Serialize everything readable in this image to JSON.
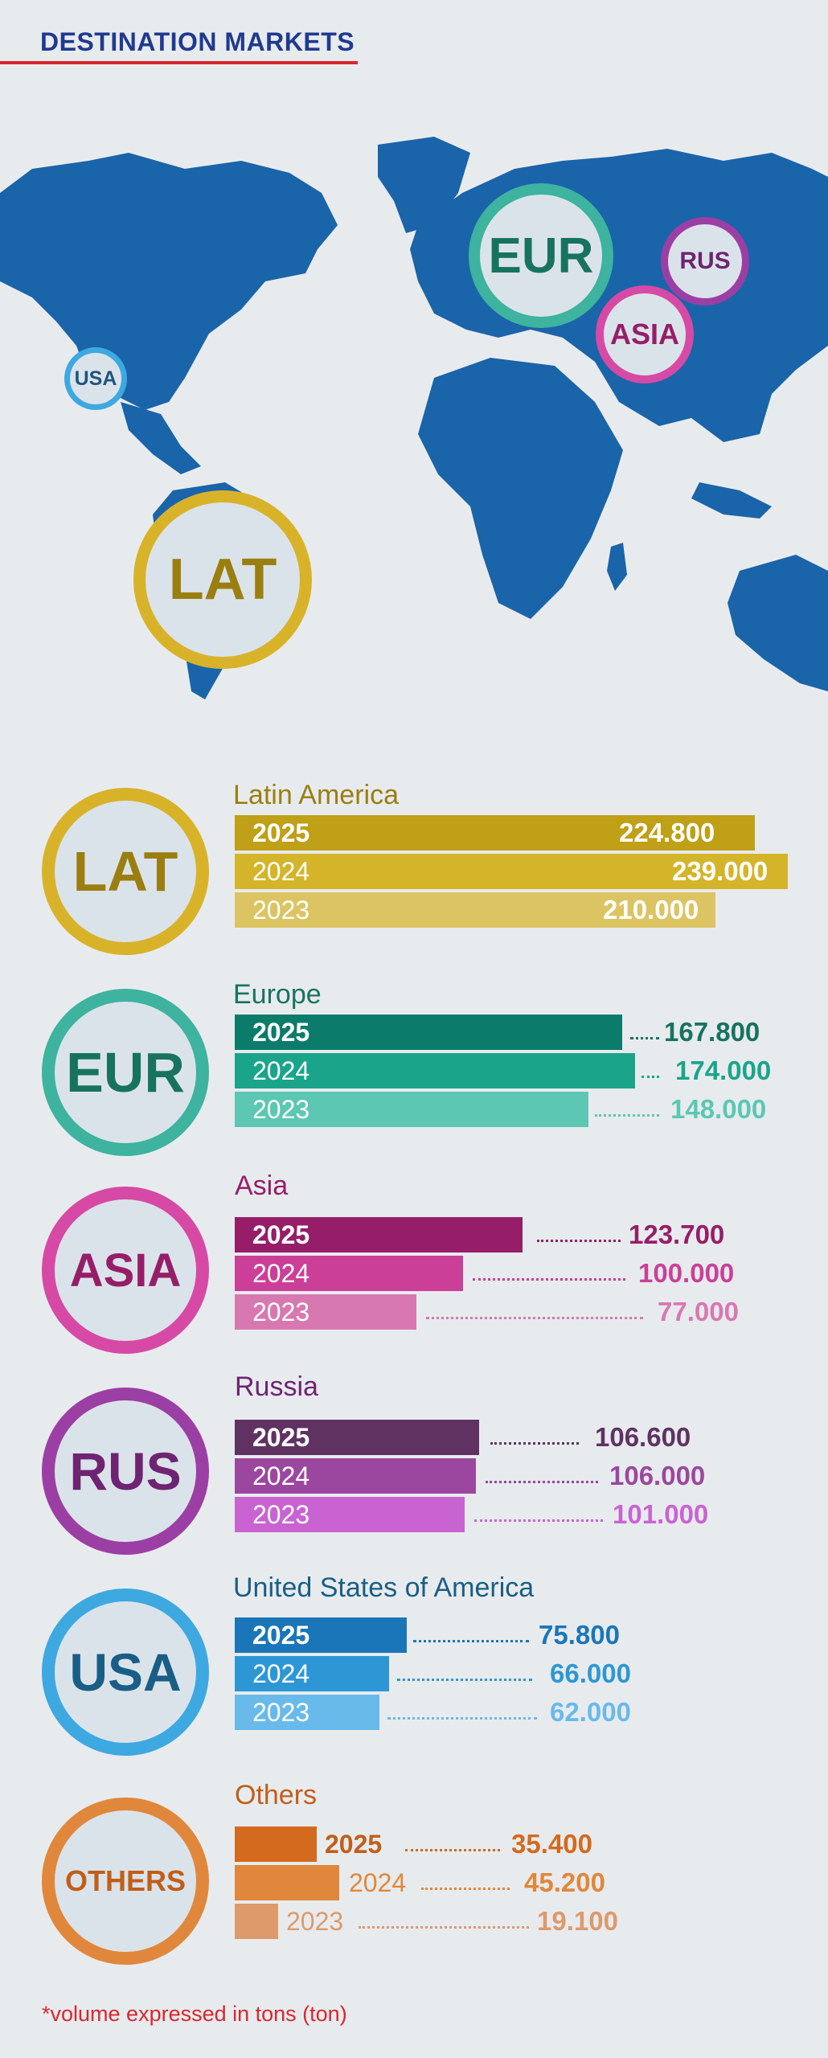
{
  "header": {
    "title": "DESTINATION MARKETS"
  },
  "map": {
    "bubbles": [
      {
        "code": "USA",
        "color": "#3ea8e0"
      },
      {
        "code": "EUR",
        "color": "#3db3a0"
      },
      {
        "code": "RUS",
        "color": "#9b3fa4"
      },
      {
        "code": "ASIA",
        "color": "#d64aa5"
      },
      {
        "code": "LAT",
        "color": "#d8b32a"
      }
    ]
  },
  "chart_data": {
    "type": "bar",
    "orientation": "horizontal",
    "unit_note": "*volume expressed in tons (ton)",
    "categories": [
      "2025",
      "2024",
      "2023"
    ],
    "regions": [
      {
        "code": "LAT",
        "name": "Latin America",
        "values": [
          224.8,
          239.0,
          210.0
        ],
        "labels": [
          "224.800",
          "239.000",
          "210.000"
        ],
        "colors": [
          "#bfa017",
          "#d4b52a",
          "#dcc462"
        ],
        "label_color": "#8f7a10"
      },
      {
        "code": "EUR",
        "name": "Europe",
        "values": [
          167.8,
          174.0,
          148.0
        ],
        "labels": [
          "167.800",
          "174.000",
          "148.000"
        ],
        "colors": [
          "#0b7c6b",
          "#1aa58b",
          "#5cc7b3"
        ],
        "label_color": "#17735f"
      },
      {
        "code": "ASIA",
        "name": "Asia",
        "values": [
          123.7,
          100.0,
          77.0
        ],
        "labels": [
          "123.700",
          "100.000",
          "77.000"
        ],
        "colors": [
          "#961e68",
          "#cb3f98",
          "#d878b0"
        ],
        "label_color": "#961e68"
      },
      {
        "code": "RUS",
        "name": "Russia",
        "values": [
          106.6,
          106.0,
          101.0
        ],
        "labels": [
          "106.600",
          "106.000",
          "101.000"
        ],
        "colors": [
          "#5f3262",
          "#9b479f",
          "#c963d2"
        ],
        "label_color": "#6e2472"
      },
      {
        "code": "USA",
        "name": "United States of America",
        "values": [
          75.8,
          66.0,
          62.0
        ],
        "labels": [
          "75.800",
          "66.000",
          "62.000"
        ],
        "colors": [
          "#1a76b8",
          "#2d97d5",
          "#68baea"
        ],
        "label_color": "#195e86"
      },
      {
        "code": "OTHERS",
        "name": "Others",
        "values": [
          35.4,
          45.2,
          19.1
        ],
        "labels": [
          "35.400",
          "45.200",
          "19.100"
        ],
        "colors": [
          "#d36a1e",
          "#e1873b",
          "#dd9a6a"
        ],
        "label_color": "#c15e19"
      }
    ]
  }
}
